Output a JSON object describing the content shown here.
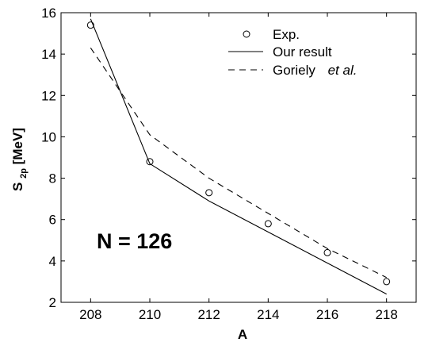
{
  "chart_data": {
    "type": "line",
    "xlabel": "A",
    "ylabel": {
      "main": "S",
      "sub": "2p",
      "unit": " [MeV]"
    },
    "xlim": [
      207,
      219
    ],
    "ylim": [
      2,
      16
    ],
    "xticks": [
      208,
      210,
      212,
      214,
      216,
      218
    ],
    "yticks": [
      2,
      4,
      6,
      8,
      10,
      12,
      14,
      16
    ],
    "grid": false,
    "legend_position": "top-right",
    "annotation": "N = 126",
    "series": [
      {
        "name": "Exp.",
        "style": "markers",
        "marker": "circle",
        "x": [
          208,
          210,
          212,
          214,
          216,
          218
        ],
        "y": [
          15.4,
          8.8,
          7.3,
          5.8,
          4.4,
          3.0
        ]
      },
      {
        "name": "Our result",
        "style": "solid",
        "x": [
          208,
          210,
          212,
          214,
          216,
          218
        ],
        "y": [
          15.7,
          8.7,
          6.9,
          5.4,
          3.9,
          2.4
        ]
      },
      {
        "name": "Goriely",
        "name_suffix": "et al.",
        "style": "dashed",
        "x": [
          208,
          210,
          212,
          214,
          216,
          218
        ],
        "y": [
          14.3,
          10.1,
          8.0,
          6.3,
          4.6,
          3.2
        ]
      }
    ]
  }
}
